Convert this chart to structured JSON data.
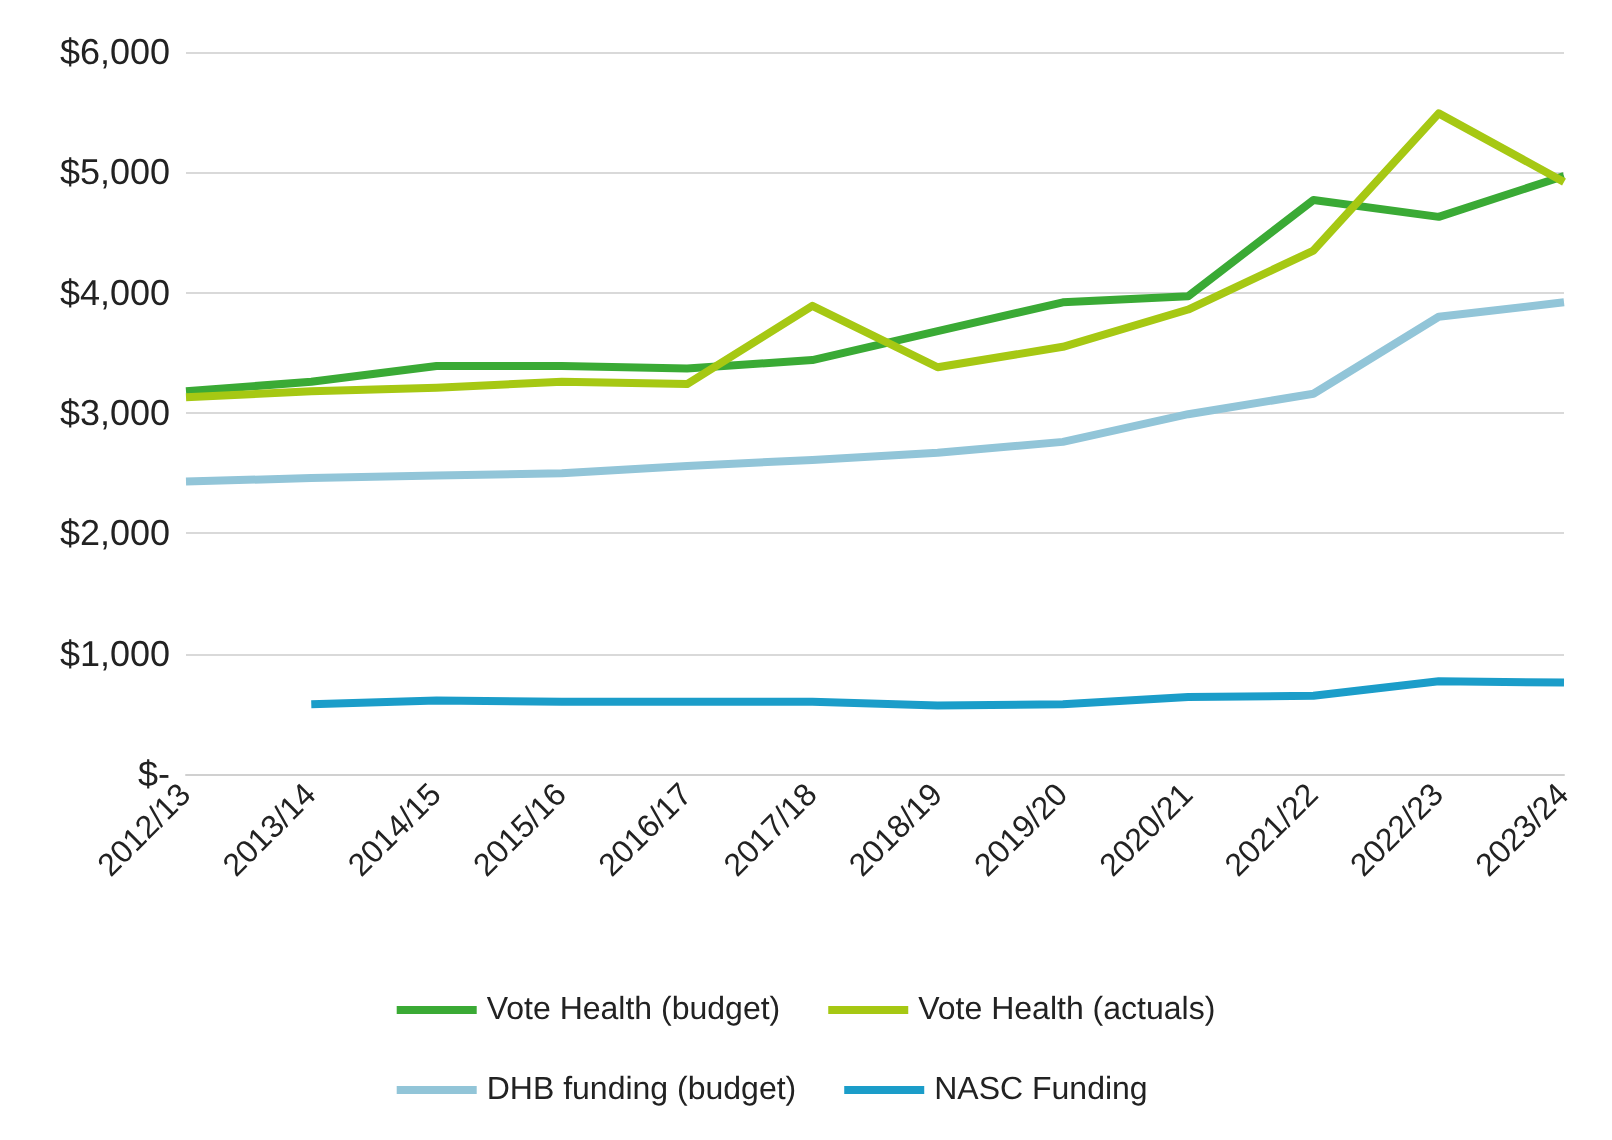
{
  "chart_data": {
    "type": "line",
    "categories": [
      "2012/13",
      "2013/14",
      "2014/15",
      "2015/16",
      "2016/17",
      "2017/18",
      "2018/19",
      "2019/20",
      "2020/21",
      "2021/22",
      "2022/23",
      "2023/24"
    ],
    "series": [
      {
        "name": "Vote Health (budget)",
        "color": "#3aaa35",
        "values": [
          3180,
          3260,
          3390,
          3390,
          3370,
          3440,
          3680,
          3920,
          3970,
          4770,
          4630,
          4970
        ]
      },
      {
        "name": "Vote Health (actuals)",
        "color": "#a6c813",
        "values": [
          3130,
          3180,
          3210,
          3260,
          3240,
          3890,
          3380,
          3550,
          3860,
          4350,
          5490,
          4920
        ]
      },
      {
        "name": "DHB funding (budget)",
        "color": "#92c5d8",
        "values": [
          2430,
          2460,
          2480,
          2500,
          2560,
          2610,
          2670,
          2760,
          2990,
          3160,
          3800,
          3920
        ]
      },
      {
        "name": "NASC Funding",
        "color": "#1b9dc9",
        "values": [
          null,
          580,
          610,
          600,
          600,
          600,
          570,
          580,
          640,
          650,
          770,
          760
        ]
      }
    ],
    "ylim": [
      0,
      6000
    ],
    "yticks": [
      {
        "value": 0,
        "label": "$-"
      },
      {
        "value": 1000,
        "label": "$1,000"
      },
      {
        "value": 2000,
        "label": "$2,000"
      },
      {
        "value": 3000,
        "label": "$3,000"
      },
      {
        "value": 4000,
        "label": "$4,000"
      },
      {
        "value": 5000,
        "label": "$5,000"
      },
      {
        "value": 6000,
        "label": "$6,000"
      }
    ],
    "grid": "y",
    "legend": "bottom",
    "marker": "none",
    "line_style": "solid"
  }
}
